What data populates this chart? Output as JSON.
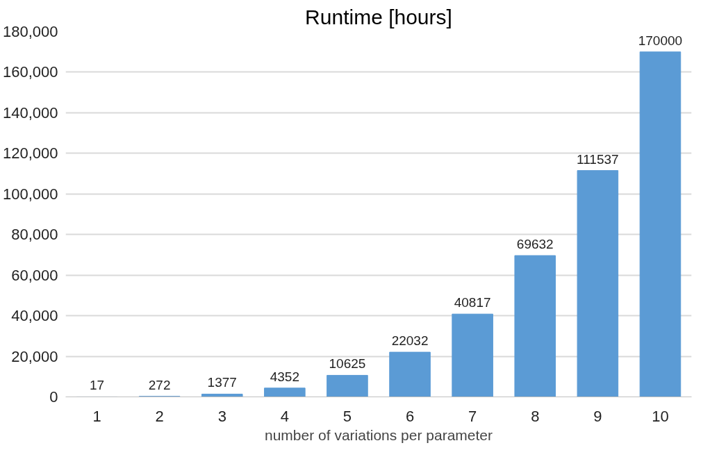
{
  "chart_data": {
    "type": "bar",
    "title": "Runtime [hours]",
    "xlabel": "number of variations per parameter",
    "categories": [
      "1",
      "2",
      "3",
      "4",
      "5",
      "6",
      "7",
      "8",
      "9",
      "10"
    ],
    "values": [
      17,
      272,
      1377,
      4352,
      10625,
      22032,
      40817,
      69632,
      111537,
      170000
    ],
    "color": "#5b9bd5",
    "data_labels": true,
    "grid": "y",
    "ylim": [
      0,
      180000
    ],
    "yticks": [
      0,
      {
        "value": 20000,
        "label": "20,000"
      },
      {
        "value": 40000,
        "label": "40,000"
      },
      {
        "value": 60000,
        "label": "60,000"
      },
      {
        "value": 80000,
        "label": "80,000"
      },
      {
        "value": 100000,
        "label": "100,000"
      },
      {
        "value": 120000,
        "label": "120,000"
      },
      {
        "value": 140000,
        "label": "140,000"
      },
      {
        "value": 160000,
        "label": "160,000"
      },
      {
        "value": 180000,
        "label": "180,000"
      }
    ]
  }
}
